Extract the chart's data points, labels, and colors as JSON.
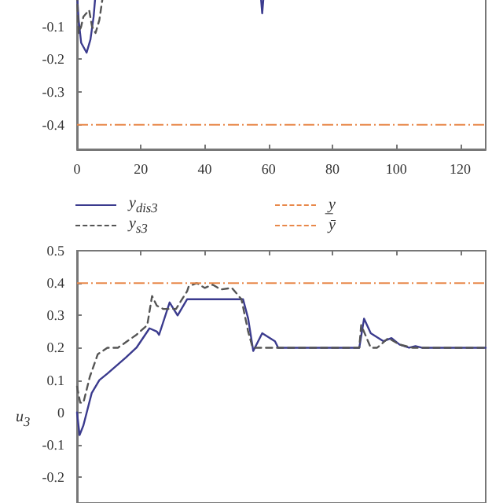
{
  "chart_data": [
    {
      "type": "line",
      "legend": "bottom",
      "xlim": [
        0,
        128
      ],
      "xticks": [
        0,
        20,
        40,
        60,
        80,
        100,
        120
      ],
      "ylim": [
        -0.475,
        0
      ],
      "yticks": [
        -0.4,
        -0.3,
        -0.2,
        -0.1
      ],
      "series": [
        {
          "name": "y$_{dis3}$",
          "color": "#3b3b8e",
          "line_style": "solid",
          "x": [
            0,
            0.5,
            1.3,
            3,
            4.2,
            5.2,
            5.8,
            57.5,
            58,
            58.5,
            128
          ],
          "values": [
            0,
            -0.08,
            -0.15,
            -0.18,
            -0.14,
            -0.07,
            0,
            0,
            -0.06,
            0,
            0
          ]
        },
        {
          "name": "y$_{s3}$",
          "color": "#555555",
          "line_style": "dashed",
          "x": [
            0,
            0.5,
            1.3,
            2,
            3.8,
            4.7,
            5.8,
            7,
            8.2,
            128
          ],
          "values": [
            0,
            -0.12,
            -0.1,
            -0.07,
            -0.05,
            -0.1,
            -0.12,
            -0.08,
            0,
            0
          ]
        }
      ],
      "ref_lines": [
        {
          "axis": "y",
          "value": -0.4,
          "label": "y̲",
          "color": "#e8884a",
          "line_style": "dashed"
        }
      ]
    },
    {
      "type": "line",
      "ylabel": "u$_{3}$",
      "tick_labels": "y",
      "xlim": [
        0,
        128
      ],
      "xticks": [
        {
          "value": 0,
          "label": null
        },
        {
          "value": 20,
          "label": null
        },
        {
          "value": 40,
          "label": null
        },
        {
          "value": 60,
          "label": null
        },
        {
          "value": 80,
          "label": null
        },
        {
          "value": 100,
          "label": null
        },
        {
          "value": 120,
          "label": null
        }
      ],
      "ylim": [
        -0.28,
        0.5
      ],
      "yticks": [
        -0.2,
        -0.1,
        0,
        0.1,
        0.2,
        0.3,
        0.4,
        0.5
      ],
      "series": [
        {
          "color": "#3b3b8e",
          "line_style": "solid",
          "x": [
            0,
            0.8,
            2,
            4.6,
            7,
            9.5,
            15.3,
            18.6,
            22.7,
            25,
            25.7,
            29,
            31.5,
            34.5,
            52,
            53.6,
            55.2,
            58,
            62,
            63,
            88.4,
            89.9,
            92,
            96,
            98.5,
            101,
            104,
            106,
            108,
            128
          ],
          "values": [
            0,
            -0.07,
            -0.04,
            0.06,
            0.1,
            0.12,
            0.17,
            0.2,
            0.26,
            0.25,
            0.24,
            0.34,
            0.3,
            0.35,
            0.35,
            0.29,
            0.19,
            0.245,
            0.22,
            0.2,
            0.2,
            0.29,
            0.245,
            0.22,
            0.23,
            0.21,
            0.2,
            0.205,
            0.2,
            0.2
          ]
        },
        {
          "color": "#555555",
          "line_style": "dashed",
          "x": [
            0,
            1,
            2,
            4,
            6.5,
            9.5,
            12.8,
            18.6,
            22,
            23.5,
            25,
            27,
            31,
            34.5,
            35,
            37.5,
            40,
            42.5,
            45,
            48.5,
            51.5,
            53.6,
            55,
            59,
            88.4,
            89,
            92,
            94,
            97.5,
            101,
            105,
            128
          ],
          "values": [
            0.08,
            0.03,
            0.03,
            0.11,
            0.18,
            0.2,
            0.2,
            0.24,
            0.27,
            0.36,
            0.33,
            0.32,
            0.32,
            0.375,
            0.39,
            0.4,
            0.385,
            0.395,
            0.38,
            0.385,
            0.35,
            0.25,
            0.2,
            0.2,
            0.2,
            0.27,
            0.2,
            0.2,
            0.23,
            0.21,
            0.2,
            0.2
          ]
        }
      ],
      "ref_lines": [
        {
          "axis": "y",
          "value": 0.4,
          "label": "ȳ",
          "color": "#e8884a",
          "line_style": "dashed"
        }
      ]
    }
  ]
}
